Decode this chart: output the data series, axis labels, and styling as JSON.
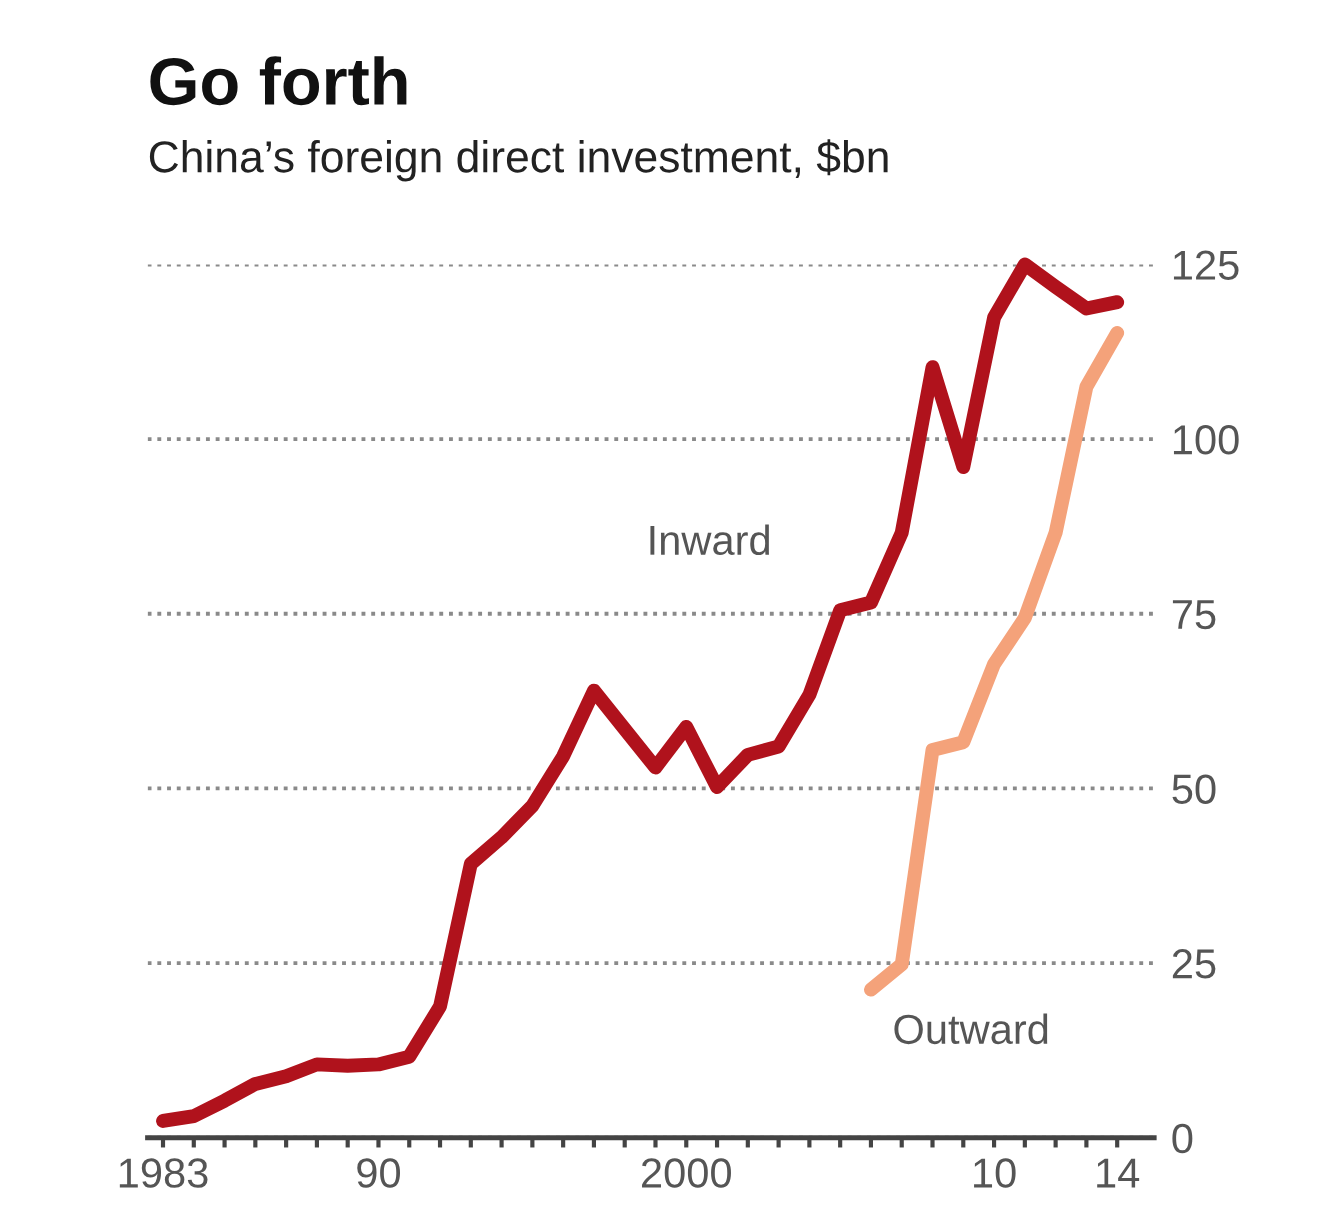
{
  "chart_data": {
    "type": "line",
    "title": "Go forth",
    "subtitle": "China’s foreign direct investment, $bn",
    "series": [
      {
        "name": "Inward",
        "color": "#b0121c",
        "x": [
          1983,
          1984,
          1985,
          1986,
          1987,
          1988,
          1989,
          1990,
          1991,
          1992,
          1993,
          1994,
          1995,
          1996,
          1997,
          1998,
          1999,
          2000,
          2001,
          2002,
          2003,
          2004,
          2005,
          2006,
          2007,
          2008,
          2009,
          2010,
          2011,
          2012,
          2013,
          2014
        ],
        "values": [
          2.4,
          3.1,
          5.3,
          7.7,
          8.8,
          10.5,
          10.3,
          10.5,
          11.6,
          18.8,
          39.2,
          43,
          47.5,
          54.6,
          64,
          58.5,
          53,
          58.8,
          50.2,
          54.8,
          56,
          63.4,
          75.5,
          76.6,
          86.6,
          110.3,
          96,
          117.4,
          125,
          121.8,
          118.7,
          119.6
        ]
      },
      {
        "name": "Outward",
        "color": "#f4a27a",
        "x": [
          2006,
          2007,
          2008,
          2009,
          2010,
          2011,
          2012,
          2013,
          2014
        ],
        "values": [
          21.2,
          24.8,
          55.5,
          56.6,
          67.8,
          74.4,
          86.6,
          107.5,
          115.2
        ]
      }
    ],
    "xlim": [
      1982.5,
      2015.2
    ],
    "xticks": [
      {
        "value": 1983,
        "label": "1983"
      },
      {
        "value": 1984,
        "label": null
      },
      {
        "value": 1985,
        "label": null
      },
      {
        "value": 1986,
        "label": null
      },
      {
        "value": 1987,
        "label": null
      },
      {
        "value": 1988,
        "label": null
      },
      {
        "value": 1989,
        "label": null
      },
      {
        "value": 1990,
        "label": "90"
      },
      {
        "value": 1991,
        "label": null
      },
      {
        "value": 1992,
        "label": null
      },
      {
        "value": 1993,
        "label": null
      },
      {
        "value": 1994,
        "label": null
      },
      {
        "value": 1995,
        "label": null
      },
      {
        "value": 1996,
        "label": null
      },
      {
        "value": 1997,
        "label": null
      },
      {
        "value": 1998,
        "label": null
      },
      {
        "value": 1999,
        "label": null
      },
      2000,
      {
        "value": 2001,
        "label": null
      },
      {
        "value": 2002,
        "label": null
      },
      {
        "value": 2003,
        "label": null
      },
      {
        "value": 2004,
        "label": null
      },
      {
        "value": 2005,
        "label": null
      },
      {
        "value": 2006,
        "label": null
      },
      {
        "value": 2007,
        "label": null
      },
      {
        "value": 2008,
        "label": null
      },
      {
        "value": 2009,
        "label": null
      },
      {
        "value": 2010,
        "label": "10"
      },
      {
        "value": 2011,
        "label": null
      },
      {
        "value": 2012,
        "label": null
      },
      {
        "value": 2013,
        "label": null
      },
      {
        "value": 2014,
        "label": "14"
      }
    ],
    "ylim": [
      0,
      125
    ],
    "yticks": [
      0,
      25,
      50,
      75,
      100,
      125
    ],
    "grid": "y",
    "legend": false,
    "line_style": "solid",
    "marker": "none"
  }
}
